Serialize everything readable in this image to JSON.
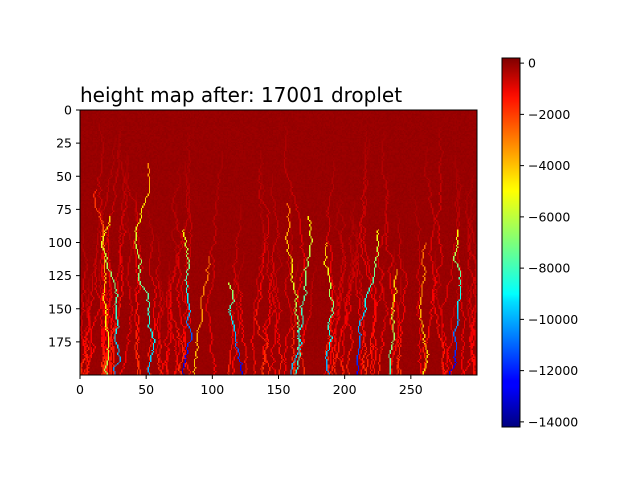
{
  "chart_data": {
    "type": "heatmap",
    "title": "height map after: 17001 droplet",
    "colormap": "jet",
    "grid": false,
    "image_size": {
      "cols": 300,
      "rows": 200
    },
    "xlim": [
      0,
      300
    ],
    "ylim": [
      200,
      0
    ],
    "x_ticks": [
      {
        "value": 0,
        "label": "0"
      },
      {
        "value": 50,
        "label": "50"
      },
      {
        "value": 100,
        "label": "100"
      },
      {
        "value": 150,
        "label": "150"
      },
      {
        "value": 200,
        "label": "200"
      },
      {
        "value": 250,
        "label": "250"
      }
    ],
    "y_ticks": [
      {
        "value": 0,
        "label": "0"
      },
      {
        "value": 25,
        "label": "25"
      },
      {
        "value": 50,
        "label": "50"
      },
      {
        "value": 75,
        "label": "75"
      },
      {
        "value": 100,
        "label": "100"
      },
      {
        "value": 125,
        "label": "125"
      },
      {
        "value": 150,
        "label": "150"
      },
      {
        "value": 175,
        "label": "175"
      }
    ],
    "colorbar": {
      "range": [
        -14200,
        200
      ],
      "ticks": [
        {
          "value": 0,
          "label": "0"
        },
        {
          "value": -2000,
          "label": "−2000"
        },
        {
          "value": -4000,
          "label": "−4000"
        },
        {
          "value": -6000,
          "label": "−6000"
        },
        {
          "value": -8000,
          "label": "−8000"
        },
        {
          "value": -10000,
          "label": "−10000"
        },
        {
          "value": -12000,
          "label": "−12000"
        },
        {
          "value": -14000,
          "label": "−14000"
        }
      ]
    },
    "channels": [
      {
        "x_start": 12,
        "y_start": 60,
        "depth_min": -2000,
        "depth_max": -6500
      },
      {
        "x_start": 22,
        "y_start": 80,
        "depth_min": -4500,
        "depth_max": -10500
      },
      {
        "x_start": 52,
        "y_start": 40,
        "depth_min": -3500,
        "depth_max": -10000
      },
      {
        "x_start": 78,
        "y_start": 90,
        "depth_min": -5000,
        "depth_max": -13500
      },
      {
        "x_start": 98,
        "y_start": 110,
        "depth_min": -3000,
        "depth_max": -4500
      },
      {
        "x_start": 112,
        "y_start": 130,
        "depth_min": -6000,
        "depth_max": -13000
      },
      {
        "x_start": 155,
        "y_start": 70,
        "depth_min": -3000,
        "depth_max": -8500
      },
      {
        "x_start": 172,
        "y_start": 80,
        "depth_min": -5000,
        "depth_max": -10000
      },
      {
        "x_start": 186,
        "y_start": 100,
        "depth_min": -4000,
        "depth_max": -10500
      },
      {
        "x_start": 225,
        "y_start": 90,
        "depth_min": -5000,
        "depth_max": -12500
      },
      {
        "x_start": 240,
        "y_start": 120,
        "depth_min": -4000,
        "depth_max": -8000
      },
      {
        "x_start": 262,
        "y_start": 100,
        "depth_min": -3000,
        "depth_max": -5000
      },
      {
        "x_start": 285,
        "y_start": 90,
        "depth_min": -5000,
        "depth_max": -13000
      }
    ]
  }
}
